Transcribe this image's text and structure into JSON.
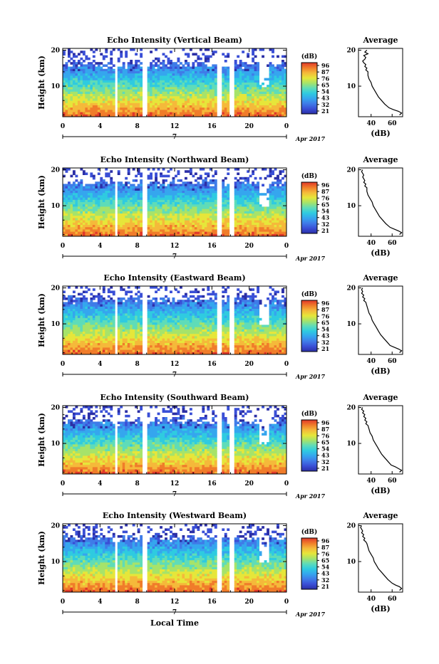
{
  "common": {
    "ylabel": "Height (km)",
    "xlabel": "Local Time",
    "date_label": "Apr 2017",
    "day_label": "7",
    "colorbar_unit": "(dB)",
    "colorbar_ticks": [
      "96",
      "87",
      "76",
      "65",
      "54",
      "43",
      "32",
      "21"
    ],
    "colormap": [
      "#2b2fa6",
      "#3a4fd6",
      "#3f7ce8",
      "#35a6ee",
      "#2fcbe0",
      "#5fdcb8",
      "#a6e36a",
      "#e6e63a",
      "#f5b93a",
      "#f07c2a",
      "#e0382a"
    ],
    "avg_title": "Average",
    "avg_xlabel": "(dB)"
  },
  "chart_data": [
    {
      "type": "heatmap",
      "title": "Echo Intensity (Vertical Beam)",
      "x_ticks": [
        "0",
        "4",
        "8",
        "12",
        "16",
        "20",
        "0"
      ],
      "y_ticks": [
        "20",
        "10"
      ],
      "xlim": [
        0,
        24
      ],
      "ylim": [
        1.5,
        20.5
      ],
      "gaps": [
        [
          5.7,
          5.95
        ],
        [
          8.65,
          9.1
        ],
        [
          16.55,
          17.0
        ],
        [
          17.9,
          18.3
        ]
      ],
      "colorbar_range": [
        21,
        96
      ],
      "profile": {
        "x_ticks": [
          "40",
          "60"
        ],
        "y_ticks": [
          "20",
          "10"
        ],
        "xlim": [
          28,
          70
        ],
        "ylim": [
          1.5,
          20.5
        ],
        "points": [
          [
            36,
            20
          ],
          [
            34,
            19.5
          ],
          [
            37,
            19
          ],
          [
            33,
            18.5
          ],
          [
            35,
            18
          ],
          [
            34,
            17.5
          ],
          [
            32,
            17
          ],
          [
            33,
            16.5
          ],
          [
            35,
            16
          ],
          [
            34,
            15.5
          ],
          [
            36,
            15
          ],
          [
            35,
            14.5
          ],
          [
            37,
            14
          ],
          [
            37,
            13
          ],
          [
            38,
            12
          ],
          [
            40,
            11
          ],
          [
            41,
            10
          ],
          [
            43,
            9
          ],
          [
            45,
            8
          ],
          [
            47,
            7
          ],
          [
            50,
            6
          ],
          [
            53,
            5
          ],
          [
            57,
            4
          ],
          [
            61,
            3.5
          ],
          [
            66,
            3
          ],
          [
            69,
            2.5
          ],
          [
            67,
            2
          ]
        ]
      }
    },
    {
      "type": "heatmap",
      "title": "Echo Intensity (Northward Beam)",
      "x_ticks": [
        "0",
        "4",
        "8",
        "12",
        "16",
        "20",
        "0"
      ],
      "y_ticks": [
        "20",
        "10"
      ],
      "xlim": [
        0,
        24
      ],
      "ylim": [
        1.5,
        20.5
      ],
      "gaps": [
        [
          5.7,
          5.95
        ],
        [
          8.65,
          9.1
        ],
        [
          16.55,
          17.0
        ],
        [
          17.9,
          18.3
        ]
      ],
      "colorbar_range": [
        21,
        96
      ],
      "profile": {
        "x_ticks": [
          "40",
          "60"
        ],
        "y_ticks": [
          "20",
          "10"
        ],
        "xlim": [
          28,
          70
        ],
        "ylim": [
          1.5,
          20.5
        ],
        "points": [
          [
            32,
            20
          ],
          [
            31,
            19.5
          ],
          [
            32,
            19
          ],
          [
            33,
            18.5
          ],
          [
            32,
            18
          ],
          [
            33,
            17.5
          ],
          [
            34,
            17
          ],
          [
            33,
            16.5
          ],
          [
            35,
            16
          ],
          [
            34,
            15.5
          ],
          [
            36,
            15
          ],
          [
            36,
            14
          ],
          [
            37,
            13
          ],
          [
            39,
            12
          ],
          [
            41,
            11
          ],
          [
            42,
            10
          ],
          [
            44,
            9
          ],
          [
            46,
            8
          ],
          [
            48,
            7
          ],
          [
            51,
            6
          ],
          [
            54,
            5
          ],
          [
            58,
            4
          ],
          [
            62,
            3.5
          ],
          [
            66,
            3
          ],
          [
            69,
            2.5
          ],
          [
            67,
            2
          ]
        ]
      }
    },
    {
      "type": "heatmap",
      "title": "Echo Intensity (Eastward Beam)",
      "x_ticks": [
        "0",
        "4",
        "8",
        "12",
        "16",
        "20",
        "0"
      ],
      "y_ticks": [
        "20",
        "10"
      ],
      "xlim": [
        0,
        24
      ],
      "ylim": [
        1.5,
        20.5
      ],
      "gaps": [
        [
          5.7,
          5.95
        ],
        [
          8.65,
          9.1
        ],
        [
          16.55,
          17.0
        ],
        [
          17.9,
          18.3
        ]
      ],
      "colorbar_range": [
        21,
        96
      ],
      "profile": {
        "x_ticks": [
          "40",
          "60"
        ],
        "y_ticks": [
          "20",
          "10"
        ],
        "xlim": [
          28,
          70
        ],
        "ylim": [
          1.5,
          20.5
        ],
        "points": [
          [
            32,
            20
          ],
          [
            31,
            19.5
          ],
          [
            32,
            19
          ],
          [
            31,
            18.5
          ],
          [
            33,
            18
          ],
          [
            32,
            17.5
          ],
          [
            34,
            17
          ],
          [
            33,
            16.5
          ],
          [
            35,
            16
          ],
          [
            36,
            15
          ],
          [
            37,
            14
          ],
          [
            38,
            13
          ],
          [
            40,
            12
          ],
          [
            41,
            11
          ],
          [
            43,
            10
          ],
          [
            45,
            9
          ],
          [
            47,
            8
          ],
          [
            49,
            7
          ],
          [
            52,
            6
          ],
          [
            55,
            5
          ],
          [
            58,
            4
          ],
          [
            62,
            3.5
          ],
          [
            66,
            3
          ],
          [
            69,
            2.5
          ],
          [
            67,
            2
          ]
        ]
      }
    },
    {
      "type": "heatmap",
      "title": "Echo Intensity (Southward Beam)",
      "x_ticks": [
        "0",
        "4",
        "8",
        "12",
        "16",
        "20",
        "0"
      ],
      "y_ticks": [
        "20",
        "10"
      ],
      "xlim": [
        0,
        24
      ],
      "ylim": [
        1.5,
        20.5
      ],
      "gaps": [
        [
          5.7,
          5.95
        ],
        [
          8.65,
          9.1
        ],
        [
          16.55,
          17.0
        ],
        [
          17.9,
          18.3
        ]
      ],
      "colorbar_range": [
        21,
        96
      ],
      "profile": {
        "x_ticks": [
          "40",
          "60"
        ],
        "y_ticks": [
          "20",
          "10"
        ],
        "xlim": [
          28,
          70
        ],
        "ylim": [
          1.5,
          20.5
        ],
        "points": [
          [
            32,
            20
          ],
          [
            31,
            19.5
          ],
          [
            33,
            19
          ],
          [
            32,
            18.5
          ],
          [
            34,
            18
          ],
          [
            33,
            17.5
          ],
          [
            35,
            17
          ],
          [
            34,
            16.5
          ],
          [
            36,
            16
          ],
          [
            35,
            15.5
          ],
          [
            37,
            15
          ],
          [
            38,
            14
          ],
          [
            39,
            13
          ],
          [
            41,
            12
          ],
          [
            42,
            11
          ],
          [
            44,
            10
          ],
          [
            46,
            9
          ],
          [
            48,
            8
          ],
          [
            50,
            7
          ],
          [
            53,
            6
          ],
          [
            56,
            5
          ],
          [
            59,
            4
          ],
          [
            63,
            3.5
          ],
          [
            66,
            3
          ],
          [
            69,
            2.5
          ],
          [
            67,
            2
          ]
        ]
      }
    },
    {
      "type": "heatmap",
      "title": "Echo Intensity (Westward Beam)",
      "x_ticks": [
        "0",
        "4",
        "8",
        "12",
        "16",
        "20",
        "0"
      ],
      "y_ticks": [
        "20",
        "10"
      ],
      "xlim": [
        0,
        24
      ],
      "ylim": [
        1.5,
        20.5
      ],
      "gaps": [
        [
          5.7,
          5.95
        ],
        [
          8.65,
          9.1
        ],
        [
          16.55,
          17.0
        ],
        [
          17.9,
          18.3
        ]
      ],
      "colorbar_range": [
        21,
        96
      ],
      "profile": {
        "x_ticks": [
          "40",
          "60"
        ],
        "y_ticks": [
          "20",
          "10"
        ],
        "xlim": [
          28,
          70
        ],
        "ylim": [
          1.5,
          20.5
        ],
        "points": [
          [
            31,
            20
          ],
          [
            30,
            19.5
          ],
          [
            31,
            19
          ],
          [
            32,
            18.5
          ],
          [
            31,
            18
          ],
          [
            33,
            17.5
          ],
          [
            32,
            17
          ],
          [
            34,
            16.5
          ],
          [
            33,
            16
          ],
          [
            35,
            15.5
          ],
          [
            36,
            15
          ],
          [
            37,
            14
          ],
          [
            38,
            13
          ],
          [
            40,
            12
          ],
          [
            42,
            11
          ],
          [
            43,
            10
          ],
          [
            45,
            9
          ],
          [
            47,
            8
          ],
          [
            50,
            7
          ],
          [
            53,
            6
          ],
          [
            56,
            5
          ],
          [
            60,
            4
          ],
          [
            63,
            3.5
          ],
          [
            67,
            3
          ],
          [
            69,
            2.5
          ],
          [
            67,
            2
          ]
        ]
      }
    }
  ]
}
